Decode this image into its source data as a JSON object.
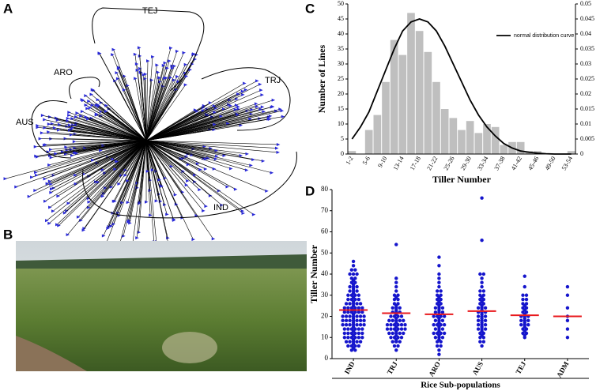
{
  "panel_labels": [
    "A",
    "B",
    "C",
    "D"
  ],
  "tree": {
    "groups": [
      "TEJ",
      "ARO",
      "TRJ",
      "AUS",
      "IND"
    ]
  },
  "chart_data": [
    {
      "type": "bar",
      "xlabel": "Tiller Number",
      "ylabel": "Number of Lines",
      "categories": [
        "1-2",
        null,
        "5-6",
        null,
        "9-10",
        null,
        "13-14",
        null,
        "17-18",
        null,
        "21-22",
        null,
        "25-26",
        null,
        "29-30",
        null,
        "33-34",
        null,
        "37-38",
        null,
        "41-42",
        null,
        "45-46",
        null,
        "49-50",
        null,
        "53-54"
      ],
      "series": [
        {
          "type": "bar",
          "color": "#bfbfbf",
          "values": [
            1,
            0,
            8,
            13,
            24,
            38,
            33,
            47,
            41,
            34,
            24,
            15,
            12,
            8,
            11,
            7,
            10,
            9,
            3,
            4,
            4,
            1,
            1,
            0,
            0,
            0,
            1
          ]
        },
        {
          "type": "line",
          "name": "normal distribution curve",
          "color": "#000000",
          "axis": "y2",
          "values": [
            0.005,
            0.009,
            0.014,
            0.021,
            0.028,
            0.035,
            0.041,
            0.044,
            0.045,
            0.044,
            0.041,
            0.036,
            0.03,
            0.024,
            0.018,
            0.013,
            0.009,
            0.006,
            0.0035,
            0.002,
            0.001,
            0.0006,
            0.0003,
            0.0001,
            0,
            0,
            0
          ]
        }
      ],
      "ylim": [
        0,
        50
      ],
      "yticks": [
        0,
        5,
        10,
        15,
        20,
        25,
        30,
        35,
        40,
        45,
        50
      ],
      "y2lim": [
        0,
        0.05
      ],
      "y2ticks": [
        0,
        0.005,
        0.01,
        0.015,
        0.02,
        0.025,
        0.03,
        0.035,
        0.04,
        0.045,
        0.05
      ],
      "legend": "upper right"
    },
    {
      "type": "strip",
      "xlabel": "Rice Sub-populations",
      "ylabel": "Tiller Number",
      "categories": [
        "IND",
        "TRJ",
        "ARO",
        "AUS",
        "TEJ",
        "ADM"
      ],
      "series": [
        {
          "type": "dots",
          "color": "#1515cc",
          "values": [
            [
              46,
              44,
              42,
              42,
              40,
              40,
              40,
              38,
              38,
              37,
              36,
              36,
              35,
              34,
              34,
              34,
              33,
              32,
              32,
              32,
              31,
              30,
              30,
              30,
              30,
              29,
              28,
              28,
              28,
              28,
              27,
              26,
              26,
              26,
              26,
              26,
              25,
              24,
              24,
              24,
              24,
              24,
              24,
              23,
              22,
              22,
              22,
              22,
              22,
              22,
              21,
              20,
              20,
              20,
              20,
              20,
              20,
              20,
              19,
              18,
              18,
              18,
              18,
              18,
              18,
              18,
              17,
              16,
              16,
              16,
              16,
              16,
              16,
              16,
              15,
              14,
              14,
              14,
              14,
              14,
              14,
              13,
              12,
              12,
              12,
              12,
              12,
              12,
              11,
              10,
              10,
              10,
              10,
              10,
              10,
              9,
              8,
              8,
              8,
              8,
              8,
              7,
              6,
              6,
              6,
              6,
              5,
              4,
              4
            ],
            [
              54,
              38,
              36,
              34,
              32,
              30,
              30,
              29,
              28,
              28,
              26,
              26,
              25,
              24,
              24,
              24,
              23,
              22,
              22,
              22,
              21,
              20,
              20,
              20,
              20,
              19,
              18,
              18,
              18,
              18,
              18,
              17,
              16,
              16,
              16,
              16,
              16,
              16,
              15,
              14,
              14,
              14,
              14,
              14,
              14,
              13,
              12,
              12,
              12,
              12,
              12,
              11,
              10,
              10,
              10,
              10,
              9,
              8,
              8,
              8,
              6,
              6,
              4
            ],
            [
              48,
              44,
              40,
              38,
              36,
              34,
              32,
              32,
              30,
              30,
              29,
              28,
              28,
              27,
              26,
              26,
              25,
              24,
              24,
              24,
              23,
              22,
              22,
              22,
              21,
              20,
              20,
              20,
              20,
              19,
              18,
              18,
              18,
              17,
              16,
              16,
              16,
              16,
              15,
              14,
              14,
              14,
              13,
              12,
              12,
              12,
              12,
              11,
              10,
              10,
              10,
              9,
              8,
              8,
              6,
              6,
              4,
              2
            ],
            [
              76,
              56,
              40,
              40,
              38,
              36,
              34,
              32,
              32,
              30,
              30,
              29,
              28,
              28,
              27,
              26,
              26,
              25,
              24,
              24,
              24,
              23,
              22,
              22,
              22,
              21,
              20,
              20,
              20,
              19,
              18,
              18,
              18,
              17,
              16,
              16,
              16,
              15,
              14,
              14,
              14,
              13,
              12,
              12,
              11,
              10,
              10,
              8,
              8,
              6
            ],
            [
              39,
              34,
              30,
              30,
              28,
              28,
              26,
              26,
              25,
              24,
              24,
              23,
              22,
              22,
              21,
              20,
              20,
              20,
              19,
              18,
              18,
              18,
              17,
              16,
              16,
              16,
              15,
              14,
              14,
              13,
              12,
              12,
              11,
              10
            ],
            [
              34,
              30,
              24,
              20,
              18,
              14,
              10
            ]
          ]
        },
        {
          "type": "mean",
          "color": "#e8191d",
          "values": [
            23,
            21.5,
            21,
            22.5,
            20.5,
            20
          ]
        }
      ],
      "ylim": [
        0,
        80
      ],
      "yticks": [
        0,
        10,
        20,
        30,
        40,
        50,
        60,
        70,
        80
      ]
    }
  ]
}
